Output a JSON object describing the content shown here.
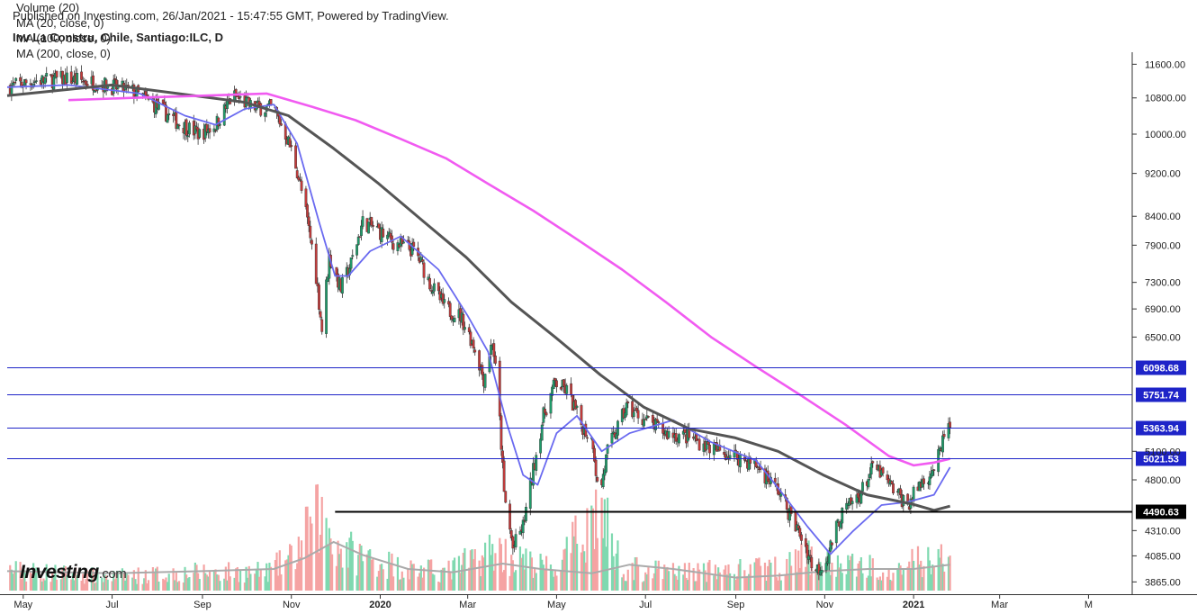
{
  "header": {
    "published": "Published on Investing.com, 26/Jan/2021 - 15:47:55 GMT, Powered by TradingView.",
    "symbol": "Inv La Constru, Chile, Santiago:ILC, D"
  },
  "legend": [
    "Volume (20)",
    "MA (20, close, 0)",
    "MA (100, close, 0)",
    "MA (200, close, 0)"
  ],
  "logo": {
    "brand": "Investing",
    "suffix": ".com"
  },
  "colors": {
    "up": "#1f9c6a",
    "down": "#c43b3b",
    "ma20": "#6a6af0",
    "ma100": "#555555",
    "ma200": "#f15bf1",
    "level": "#1e24c8",
    "support": "#000000",
    "vol_up": "#7fd9b0",
    "vol_down": "#f5a3a3",
    "vol_ma": "#aaaaaa"
  },
  "chart_data": {
    "type": "candlestick",
    "title": "Inv La Constru, Chile, Santiago:ILC, D",
    "y_scale": "log",
    "ylim": [
      3780,
      11900
    ],
    "y_ticks": [
      11600,
      10800,
      10000,
      9200,
      8400,
      7900,
      7300,
      6900,
      6500,
      5100,
      4800,
      4310,
      4085,
      3865
    ],
    "y_tick_labels": [
      "11600.00",
      "10800.00",
      "10000.00",
      "9200.00",
      "8400.00",
      "7900.00",
      "7300.00",
      "6900.00",
      "6500.00",
      "5100.00",
      "4800.00",
      "4310.00",
      "4085.00",
      "3865.00"
    ],
    "x_range": [
      "2019-04-20",
      "2021-05-31"
    ],
    "x_ticks": [
      {
        "date": "2019-05-01",
        "label": "May",
        "bold": false
      },
      {
        "date": "2019-07-01",
        "label": "Jul",
        "bold": false
      },
      {
        "date": "2019-09-01",
        "label": "Sep",
        "bold": false
      },
      {
        "date": "2019-11-01",
        "label": "Nov",
        "bold": false
      },
      {
        "date": "2020-01-01",
        "label": "2020",
        "bold": true
      },
      {
        "date": "2020-03-01",
        "label": "Mar",
        "bold": false
      },
      {
        "date": "2020-05-01",
        "label": "May",
        "bold": false
      },
      {
        "date": "2020-07-01",
        "label": "Jul",
        "bold": false
      },
      {
        "date": "2020-09-01",
        "label": "Sep",
        "bold": false
      },
      {
        "date": "2020-11-01",
        "label": "Nov",
        "bold": false
      },
      {
        "date": "2021-01-01",
        "label": "2021",
        "bold": true
      },
      {
        "date": "2021-03-01",
        "label": "Mar",
        "bold": false
      },
      {
        "date": "2021-05-01",
        "label": "M",
        "bold": false
      }
    ],
    "levels": [
      {
        "value": 6098.68,
        "label": "6098.68",
        "kind": "resistance"
      },
      {
        "value": 5751.74,
        "label": "5751.74",
        "kind": "resistance"
      },
      {
        "value": 5363.94,
        "label": "5363.94",
        "kind": "resistance"
      },
      {
        "value": 5021.53,
        "label": "5021.53",
        "kind": "resistance"
      },
      {
        "value": 4490.63,
        "label": "4490.63",
        "kind": "support",
        "from": "2019-12-01"
      }
    ],
    "price_path": [
      [
        "2019-04-20",
        11050
      ],
      [
        "2019-05-10",
        11200
      ],
      [
        "2019-06-01",
        11250
      ],
      [
        "2019-06-20",
        11150
      ],
      [
        "2019-07-15",
        10950
      ],
      [
        "2019-08-01",
        10600
      ],
      [
        "2019-08-15",
        10250
      ],
      [
        "2019-08-30",
        10000
      ],
      [
        "2019-09-10",
        10200
      ],
      [
        "2019-09-22",
        10850
      ],
      [
        "2019-10-05",
        10600
      ],
      [
        "2019-10-20",
        10550
      ],
      [
        "2019-10-28",
        10000
      ],
      [
        "2019-11-03",
        9500
      ],
      [
        "2019-11-10",
        8600
      ],
      [
        "2019-11-17",
        7600
      ],
      [
        "2019-11-22",
        6600
      ],
      [
        "2019-11-27",
        7700
      ],
      [
        "2019-12-05",
        7200
      ],
      [
        "2019-12-12",
        7600
      ],
      [
        "2019-12-20",
        8300
      ],
      [
        "2019-12-28",
        8200
      ],
      [
        "2020-01-10",
        7950
      ],
      [
        "2020-01-25",
        7800
      ],
      [
        "2020-02-05",
        7250
      ],
      [
        "2020-02-15",
        6900
      ],
      [
        "2020-02-25",
        6800
      ],
      [
        "2020-03-05",
        6400
      ],
      [
        "2020-03-12",
        5950
      ],
      [
        "2020-03-18",
        6450
      ],
      [
        "2020-03-22",
        5700
      ],
      [
        "2020-03-26",
        4650
      ],
      [
        "2020-04-01",
        4150
      ],
      [
        "2020-04-08",
        4350
      ],
      [
        "2020-04-15",
        4900
      ],
      [
        "2020-04-22",
        5500
      ],
      [
        "2020-04-30",
        5900
      ],
      [
        "2020-05-08",
        5800
      ],
      [
        "2020-05-18",
        5400
      ],
      [
        "2020-05-26",
        5200
      ],
      [
        "2020-05-30",
        4600
      ],
      [
        "2020-06-05",
        5100
      ],
      [
        "2020-06-18",
        5600
      ],
      [
        "2020-07-01",
        5450
      ],
      [
        "2020-07-15",
        5300
      ],
      [
        "2020-08-01",
        5250
      ],
      [
        "2020-08-20",
        5100
      ],
      [
        "2020-09-01",
        5050
      ],
      [
        "2020-09-15",
        4950
      ],
      [
        "2020-09-30",
        4700
      ],
      [
        "2020-10-10",
        4400
      ],
      [
        "2020-10-18",
        4200
      ],
      [
        "2020-10-25",
        3950
      ],
      [
        "2020-11-02",
        4050
      ],
      [
        "2020-11-12",
        4450
      ],
      [
        "2020-11-25",
        4650
      ],
      [
        "2020-12-05",
        4950
      ],
      [
        "2020-12-15",
        4750
      ],
      [
        "2020-12-28",
        4550
      ],
      [
        "2021-01-05",
        4750
      ],
      [
        "2021-01-14",
        4900
      ],
      [
        "2021-01-20",
        5100
      ],
      [
        "2021-01-23",
        5420
      ],
      [
        "2021-01-26",
        5320
      ]
    ],
    "series": [
      {
        "name": "MA (20, close, 0)",
        "points": [
          [
            "2019-04-20",
            11050
          ],
          [
            "2019-06-01",
            11100
          ],
          [
            "2019-07-20",
            10900
          ],
          [
            "2019-08-20",
            10400
          ],
          [
            "2019-09-10",
            10200
          ],
          [
            "2019-09-30",
            10550
          ],
          [
            "2019-10-20",
            10650
          ],
          [
            "2019-11-05",
            9800
          ],
          [
            "2019-11-20",
            8300
          ],
          [
            "2019-12-01",
            7400
          ],
          [
            "2019-12-10",
            7400
          ],
          [
            "2019-12-25",
            7800
          ],
          [
            "2020-01-15",
            8050
          ],
          [
            "2020-02-10",
            7500
          ],
          [
            "2020-03-01",
            6800
          ],
          [
            "2020-03-15",
            6300
          ],
          [
            "2020-03-28",
            5400
          ],
          [
            "2020-04-08",
            4850
          ],
          [
            "2020-04-18",
            4750
          ],
          [
            "2020-05-01",
            5300
          ],
          [
            "2020-05-15",
            5500
          ],
          [
            "2020-06-01",
            5100
          ],
          [
            "2020-06-20",
            5300
          ],
          [
            "2020-07-20",
            5450
          ],
          [
            "2020-08-15",
            5200
          ],
          [
            "2020-09-15",
            5000
          ],
          [
            "2020-10-01",
            4700
          ],
          [
            "2020-10-20",
            4350
          ],
          [
            "2020-11-05",
            4100
          ],
          [
            "2020-11-20",
            4300
          ],
          [
            "2020-12-10",
            4550
          ],
          [
            "2020-12-28",
            4580
          ],
          [
            "2021-01-15",
            4650
          ],
          [
            "2021-01-26",
            4930
          ]
        ]
      },
      {
        "name": "MA (100, close, 0)",
        "points": [
          [
            "2019-04-20",
            10850
          ],
          [
            "2019-07-01",
            11100
          ],
          [
            "2019-08-15",
            10900
          ],
          [
            "2019-09-30",
            10700
          ],
          [
            "2019-10-30",
            10400
          ],
          [
            "2019-11-30",
            9700
          ],
          [
            "2019-12-31",
            9000
          ],
          [
            "2020-01-31",
            8300
          ],
          [
            "2020-02-29",
            7700
          ],
          [
            "2020-03-31",
            7000
          ],
          [
            "2020-04-30",
            6500
          ],
          [
            "2020-05-31",
            6000
          ],
          [
            "2020-06-30",
            5600
          ],
          [
            "2020-07-31",
            5350
          ],
          [
            "2020-08-31",
            5250
          ],
          [
            "2020-09-30",
            5100
          ],
          [
            "2020-10-31",
            4850
          ],
          [
            "2020-11-30",
            4650
          ],
          [
            "2020-12-31",
            4560
          ],
          [
            "2021-01-15",
            4500
          ],
          [
            "2021-01-26",
            4540
          ]
        ]
      },
      {
        "name": "MA (200, close, 0)",
        "points": [
          [
            "2019-06-01",
            10750
          ],
          [
            "2019-07-15",
            10800
          ],
          [
            "2019-09-01",
            10850
          ],
          [
            "2019-10-15",
            10900
          ],
          [
            "2019-11-15",
            10600
          ],
          [
            "2019-12-15",
            10300
          ],
          [
            "2020-01-15",
            9900
          ],
          [
            "2020-02-15",
            9500
          ],
          [
            "2020-03-15",
            9000
          ],
          [
            "2020-04-15",
            8500
          ],
          [
            "2020-05-15",
            8000
          ],
          [
            "2020-06-15",
            7500
          ],
          [
            "2020-07-15",
            7000
          ],
          [
            "2020-08-15",
            6500
          ],
          [
            "2020-09-15",
            6100
          ],
          [
            "2020-10-15",
            5750
          ],
          [
            "2020-11-15",
            5400
          ],
          [
            "2020-12-15",
            5050
          ],
          [
            "2021-01-01",
            4950
          ],
          [
            "2021-01-15",
            4980
          ],
          [
            "2021-01-26",
            5020
          ]
        ]
      }
    ],
    "volume_path": [
      [
        "2019-04-20",
        0.22
      ],
      [
        "2019-06-01",
        0.18
      ],
      [
        "2019-07-01",
        0.15
      ],
      [
        "2019-09-01",
        0.2
      ],
      [
        "2019-10-15",
        0.2
      ],
      [
        "2019-11-01",
        0.35
      ],
      [
        "2019-11-20",
        0.8
      ],
      [
        "2019-12-05",
        0.45
      ],
      [
        "2020-01-15",
        0.25
      ],
      [
        "2020-02-15",
        0.2
      ],
      [
        "2020-03-20",
        0.45
      ],
      [
        "2020-04-01",
        0.35
      ],
      [
        "2020-05-01",
        0.22
      ],
      [
        "2020-05-30",
        0.9
      ],
      [
        "2020-06-15",
        0.25
      ],
      [
        "2020-07-15",
        0.2
      ],
      [
        "2020-09-01",
        0.22
      ],
      [
        "2020-10-01",
        0.25
      ],
      [
        "2020-10-20",
        0.35
      ],
      [
        "2020-11-10",
        0.28
      ],
      [
        "2020-12-15",
        0.25
      ],
      [
        "2021-01-20",
        0.35
      ],
      [
        "2021-01-26",
        0.3
      ]
    ],
    "volume_ma_path": [
      [
        "2019-04-20",
        0.18
      ],
      [
        "2019-07-01",
        0.16
      ],
      [
        "2019-09-01",
        0.18
      ],
      [
        "2019-10-20",
        0.2
      ],
      [
        "2019-11-10",
        0.3
      ],
      [
        "2019-11-30",
        0.45
      ],
      [
        "2019-12-20",
        0.33
      ],
      [
        "2020-01-20",
        0.2
      ],
      [
        "2020-02-20",
        0.17
      ],
      [
        "2020-03-25",
        0.25
      ],
      [
        "2020-04-20",
        0.2
      ],
      [
        "2020-05-25",
        0.16
      ],
      [
        "2020-06-20",
        0.24
      ],
      [
        "2020-07-20",
        0.2
      ],
      [
        "2020-09-01",
        0.12
      ],
      [
        "2020-10-01",
        0.14
      ],
      [
        "2020-11-01",
        0.18
      ],
      [
        "2020-12-01",
        0.2
      ],
      [
        "2021-01-01",
        0.2
      ],
      [
        "2021-01-26",
        0.24
      ]
    ]
  }
}
